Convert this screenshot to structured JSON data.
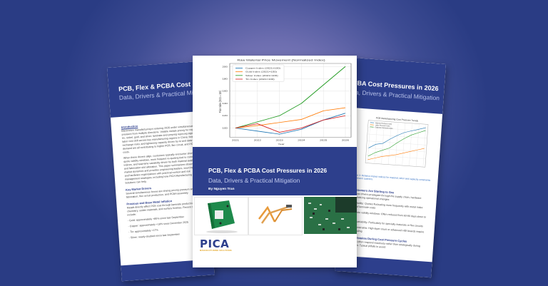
{
  "background": {
    "colors": [
      "#8b88c2",
      "#6d6eb0",
      "#3f4d94",
      "#2a3c84"
    ]
  },
  "brand": {
    "primary": "#2d3f8c",
    "accent": "#e2a21c"
  },
  "left_page": {
    "title": "PCB, Flex & PCBA Cost Pressures in 2026",
    "subtitle": "Data, Drivers & Practical Mitigation",
    "sections": [
      {
        "heading": "Introduction",
        "text": "Electronics manufacturing is entering 2026 under simultaneous cost pressure from multiple directions. Volatile metals pricing for copper, tin, nickel, gold, and silver; laminate and prepreg repricing signals; labor cost drift across key manufacturing regions in China; foreign exchange risks; and tightening capacity driven by AI and data-center demand are all contributing to higher PCB, flex circuit, and PCBA costs."
      },
      {
        "heading": "",
        "text": "When these drivers align, customers typically encounter shorter quote validity windows, more frequent re-quoting tied to commodity indices, and lead-time variability driven by both material availability and fabrication slot allocation. This paper summarizes observable market dynamics and provides engineering leaders, sourcing teams, and hardware organizations with practical context and risk management strategies, including how PICA Manufacturing Solutions can help."
      },
      {
        "heading": "Key Market Drivers",
        "text": "Several simultaneous forces are driving pricing pressure across PCB fabrication, flex circuit production, and PCBA assembly."
      },
      {
        "heading": "Precious and Base Metal Inflation",
        "text": "Metals directly affect PCB cost through laminate production, plating chemistry, solder materials, and surface finishes. Recent movements include:"
      }
    ],
    "bullets": [
      "- Gold: approximately +80% since last September",
      "- Copper: approximately +18% since December 2025",
      "- Tin: approximately +17%",
      "- Silver: nearly doubled since last September"
    ]
  },
  "center_page": {
    "title": "PCB, Flex & PCBA Cost Pressures in 2026",
    "subtitle": "Data, Drivers & Practical Mitigation",
    "author": "By Nguyen Tran",
    "logo": {
      "text": "PICA",
      "tagline": "MANUFACTURING SOLUTIONS"
    },
    "photos": [
      "rigid PCB board",
      "flex circuit",
      "PCB close-up"
    ]
  },
  "right_page": {
    "title": "PCB, Flex & PCBA Cost Pressures in 2026",
    "subtitle": "Data, Drivers & Practical Mitigation",
    "chart_title": "PCB Manufacturing Cost Pressure Trends",
    "caption": "Figure 3: Relative impact indices for material, labor and capacity constraints over recent quarters.",
    "sections": [
      {
        "heading": "What Customers Are Starting to See",
        "text": "As these cost drivers propagate through the supply chain, hardware teams are noticing operational changes:"
      },
      {
        "heading": "",
        "text": "- Pricing volatility: Quotes fluctuating more frequently with metal index changes and laminate costs"
      },
      {
        "heading": "",
        "text": "- Shorter quote validity windows: Often reduced from 60-90 days down to 15-30 days"
      },
      {
        "heading": "",
        "text": "- Lead-time variability: Particularly for specialty materials or flex circuits"
      },
      {
        "heading": "",
        "text": "- Capacity constraints: High-layer count or advanced HDI boards require earlier scheduling"
      },
      {
        "heading": "Common Mistakes During Cost Pressure Cycles",
        "text": "Organizations often respond reactively rather than strategically during volatile periods. Typical pitfalls to avoid:"
      }
    ]
  },
  "chart_data": [
    {
      "type": "line",
      "title": "Raw Material Price Movement (Normalized Index)",
      "xlabel": "Year",
      "ylabel": "Price Index (2021 = 100)",
      "x": [
        2021,
        2022,
        2023,
        2024,
        2025,
        2026
      ],
      "ylim": [
        85,
        205
      ],
      "yticks": [
        100,
        120,
        140,
        160,
        180,
        200
      ],
      "grid": true,
      "legend_position": "upper left",
      "series": [
        {
          "name": "Copper Index (2021=100)",
          "color": "#1f77b4",
          "values": [
            100,
            95,
            90,
            98,
            113,
            124
          ]
        },
        {
          "name": "Gold Index (2021=100)",
          "color": "#ff7f0e",
          "values": [
            100,
            104,
            109,
            114,
            128,
            133
          ]
        },
        {
          "name": "Silver Index (2021=100)",
          "color": "#2ca02c",
          "values": [
            100,
            110,
            120,
            140,
            170,
            200
          ]
        },
        {
          "name": "Tin Index (2021=100)",
          "color": "#d62728",
          "values": [
            100,
            107,
            93,
            100,
            113,
            120
          ]
        }
      ]
    },
    {
      "type": "line",
      "title": "PCB Manufacturing Cost Pressure Trends",
      "xlabel": "Quarter",
      "ylabel": "Index",
      "x": [
        "Q1",
        "Q2",
        "Q3",
        "Q4",
        "Q5",
        "Q6",
        "Q7",
        "Q8",
        "Q9"
      ],
      "grid": true,
      "series": [
        {
          "name": "Material Pressure Index",
          "color": "#1f77b4",
          "values": [
            60,
            66,
            68,
            75,
            81,
            86,
            89,
            92,
            95
          ]
        },
        {
          "name": "Labor Pressure Index",
          "color": "#ff7f0e",
          "values": [
            43,
            46,
            49,
            51,
            53,
            56,
            59,
            62,
            65
          ]
        },
        {
          "name": "Capacity Constraint Index",
          "color": "#2ca02c",
          "values": [
            48,
            54,
            58,
            62,
            70,
            77,
            83,
            87,
            91
          ]
        }
      ]
    }
  ]
}
